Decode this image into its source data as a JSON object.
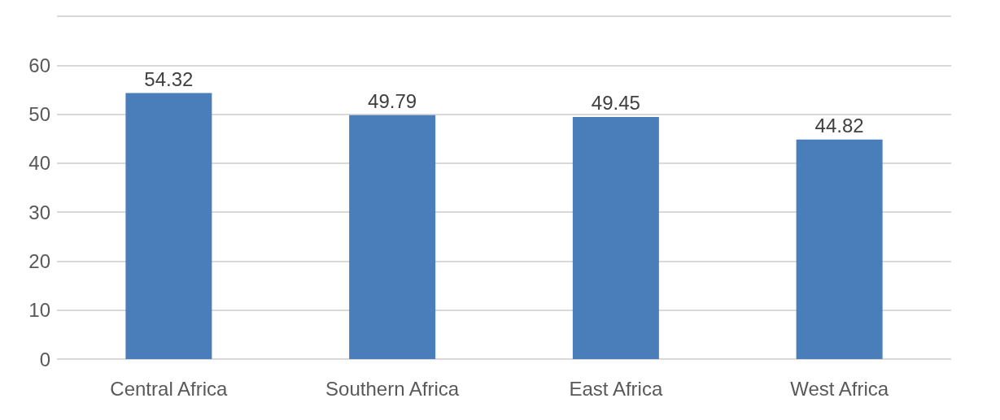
{
  "chart_data": {
    "type": "bar",
    "categories": [
      "Central Africa",
      "Southern Africa",
      "East Africa",
      "West Africa"
    ],
    "values": [
      54.32,
      49.79,
      49.45,
      44.82
    ],
    "color": "#4a7ebb",
    "ylim": [
      0,
      70
    ],
    "yticks": [
      0,
      10,
      20,
      30,
      40,
      50,
      60,
      {
        "value": 70,
        "label": null
      }
    ],
    "grid": "y",
    "data_labels": true
  }
}
